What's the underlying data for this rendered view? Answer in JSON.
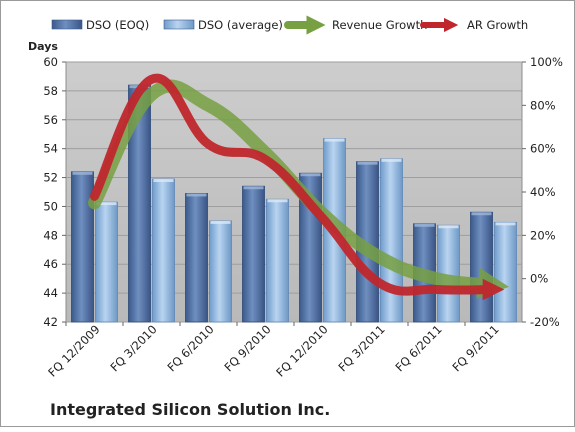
{
  "chart_data": {
    "type": "bar",
    "categories": [
      "FQ 12/2009",
      "FQ 3/2010",
      "FQ 6/2010",
      "FQ 9/2010",
      "FQ 12/2010",
      "FQ 3/2011",
      "FQ 6/2011",
      "FQ 9/2011"
    ],
    "series": [
      {
        "name": "DSO (EOQ)",
        "axis": "left",
        "kind": "bar",
        "color": "#4f6d9c",
        "values": [
          52.4,
          58.4,
          50.9,
          51.4,
          52.3,
          53.1,
          48.8,
          49.6
        ]
      },
      {
        "name": "DSO (average)",
        "axis": "left",
        "kind": "bar",
        "color": "#8fb4de",
        "values": [
          50.3,
          51.9,
          49.0,
          50.5,
          54.7,
          53.3,
          48.7,
          48.9
        ]
      },
      {
        "name": "Revenue Growth",
        "axis": "right",
        "kind": "line",
        "color": "#77a043",
        "values": [
          35,
          85,
          80,
          58,
          30,
          10,
          0,
          -3
        ]
      },
      {
        "name": "AR Growth",
        "axis": "right",
        "kind": "line",
        "color": "#c0272d",
        "values": [
          38,
          92,
          62,
          55,
          28,
          -2,
          -5,
          -5
        ]
      }
    ],
    "y_left": {
      "label": "Days",
      "ylim": [
        42,
        60
      ],
      "ticks": [
        "42",
        "44",
        "46",
        "48",
        "50",
        "52",
        "54",
        "56",
        "58",
        "60"
      ]
    },
    "y_right": {
      "ylim": [
        -20,
        100
      ],
      "ticks": [
        "-20%",
        "0%",
        "20%",
        "40%",
        "60%",
        "80%",
        "100%"
      ]
    },
    "grid": true,
    "legend_position": "top",
    "plot_background": "#c0c0c0",
    "company_label": "Integrated Silicon Solution Inc."
  }
}
